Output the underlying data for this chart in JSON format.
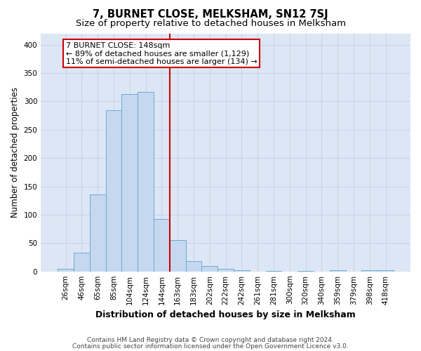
{
  "title": "7, BURNET CLOSE, MELKSHAM, SN12 7SJ",
  "subtitle": "Size of property relative to detached houses in Melksham",
  "xlabel": "Distribution of detached houses by size in Melksham",
  "ylabel": "Number of detached properties",
  "bar_labels": [
    "26sqm",
    "46sqm",
    "65sqm",
    "85sqm",
    "104sqm",
    "124sqm",
    "144sqm",
    "163sqm",
    "183sqm",
    "202sqm",
    "222sqm",
    "242sqm",
    "261sqm",
    "281sqm",
    "300sqm",
    "320sqm",
    "340sqm",
    "359sqm",
    "379sqm",
    "398sqm",
    "418sqm"
  ],
  "bar_heights": [
    5,
    33,
    136,
    284,
    313,
    316,
    93,
    55,
    18,
    9,
    4,
    2,
    0,
    1,
    0,
    1,
    0,
    2,
    0,
    2,
    2
  ],
  "bar_color": "#c5d8f0",
  "bar_edge_color": "#6aaad4",
  "vline_x_index": 6,
  "vline_color": "#cc0000",
  "annotation_line1": "7 BURNET CLOSE: 148sqm",
  "annotation_line2": "← 89% of detached houses are smaller (1,129)",
  "annotation_line3": "11% of semi-detached houses are larger (134) →",
  "ylim": [
    0,
    420
  ],
  "yticks": [
    0,
    50,
    100,
    150,
    200,
    250,
    300,
    350,
    400
  ],
  "grid_color": "#c8d4e8",
  "background_color": "#dde6f4",
  "footer_line1": "Contains HM Land Registry data © Crown copyright and database right 2024.",
  "footer_line2": "Contains public sector information licensed under the Open Government Licence v3.0.",
  "title_fontsize": 10.5,
  "subtitle_fontsize": 9.5,
  "xlabel_fontsize": 9,
  "ylabel_fontsize": 8.5,
  "tick_fontsize": 7.5,
  "annotation_fontsize": 8,
  "footer_fontsize": 6.5
}
